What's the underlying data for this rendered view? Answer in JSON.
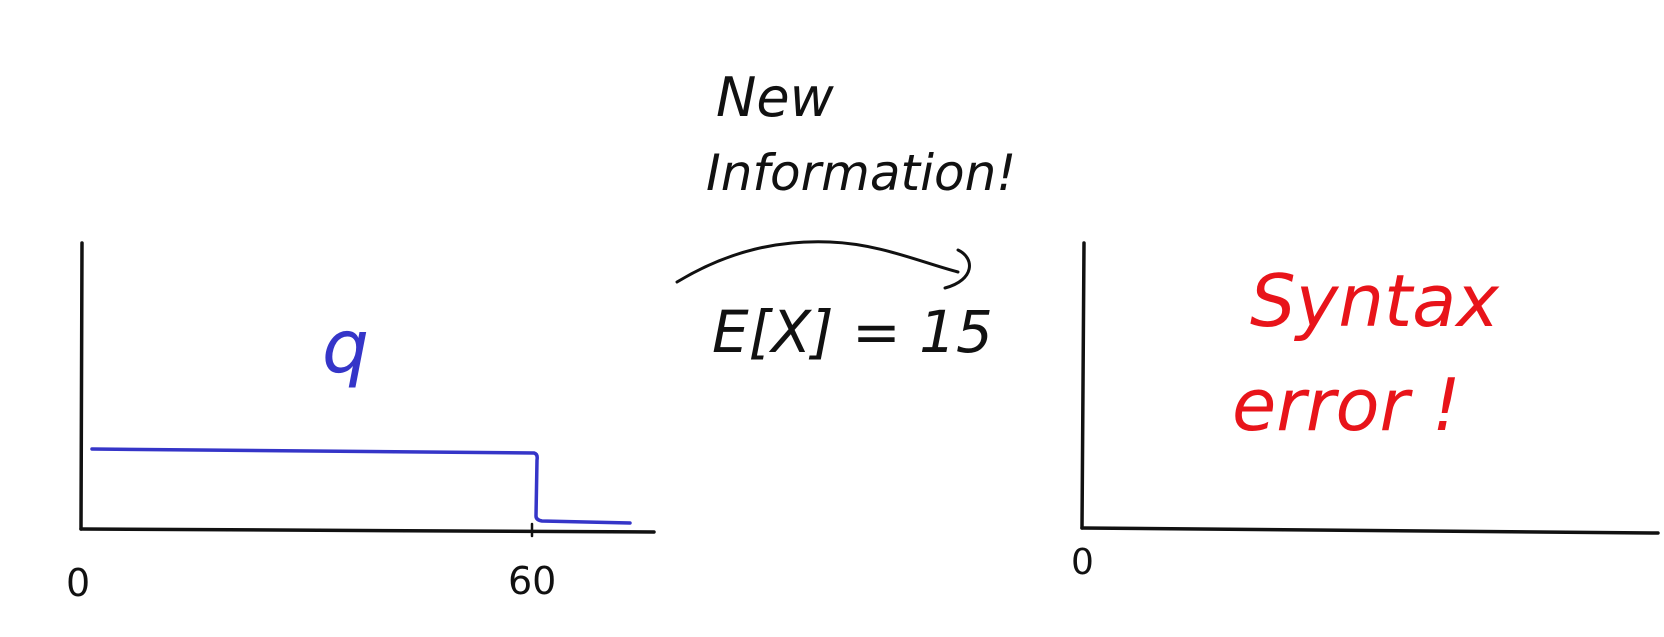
{
  "left_plot": {
    "distribution_label": "q",
    "x_tick_start": "0",
    "x_tick_end": "60",
    "colors": {
      "axes": "#111111",
      "curve": "#3535c8"
    }
  },
  "transition": {
    "annotation_line1": "New",
    "annotation_line2": "Information!",
    "constraint": "E[X] = 15",
    "colors": {
      "ink": "#111111"
    }
  },
  "right_plot": {
    "x_tick_start": "0",
    "error_line1": "Syntax",
    "error_line2": "error !",
    "colors": {
      "axes": "#111111",
      "error": "#e8141a"
    }
  }
}
